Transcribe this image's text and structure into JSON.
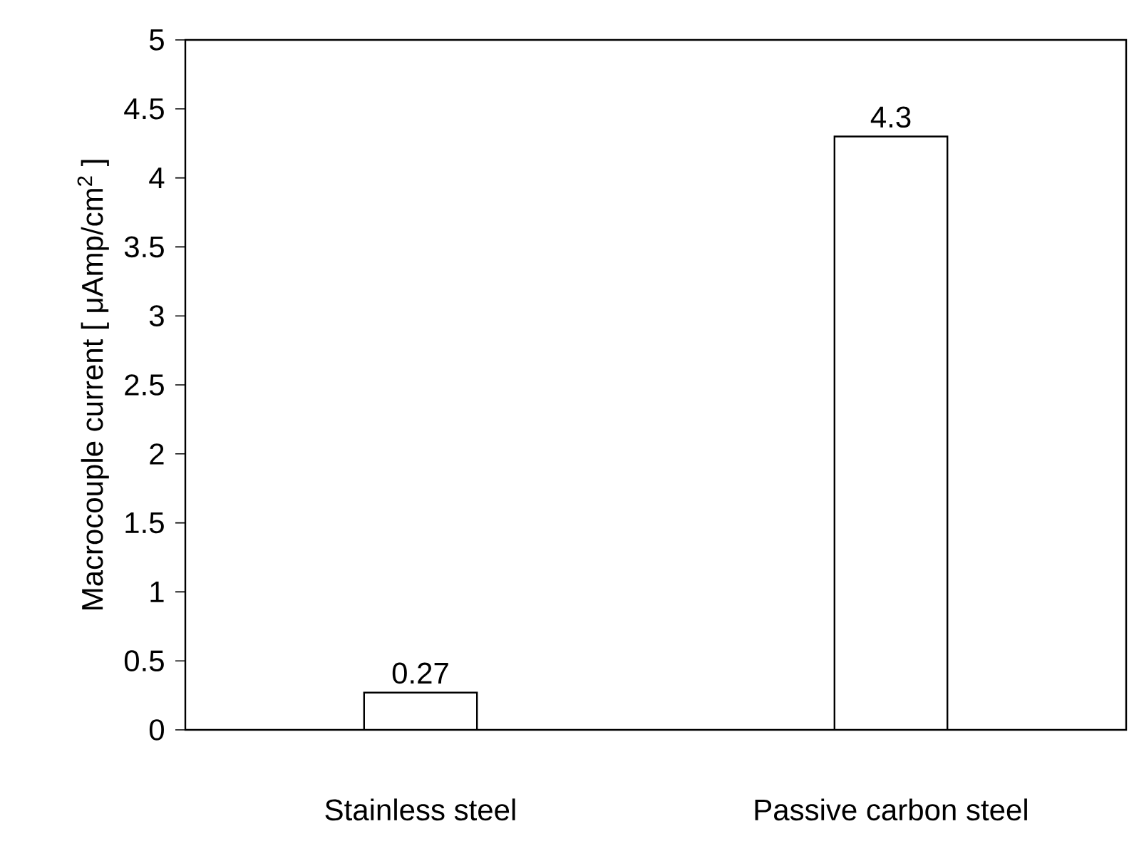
{
  "chart_data": {
    "type": "bar",
    "ylabel": "Macrocouple current [ μAmp/cm$^{2}$ ]",
    "categories": [
      "Stainless steel",
      "Passive carbon steel"
    ],
    "values": [
      0.27,
      4.3
    ],
    "color": "#ffffff",
    "ylim": [
      0,
      5
    ],
    "yticks": [
      0,
      0.5,
      1,
      1.5,
      2,
      2.5,
      3,
      3.5,
      4,
      4.5,
      5
    ],
    "data_labels": true,
    "grid": false
  }
}
